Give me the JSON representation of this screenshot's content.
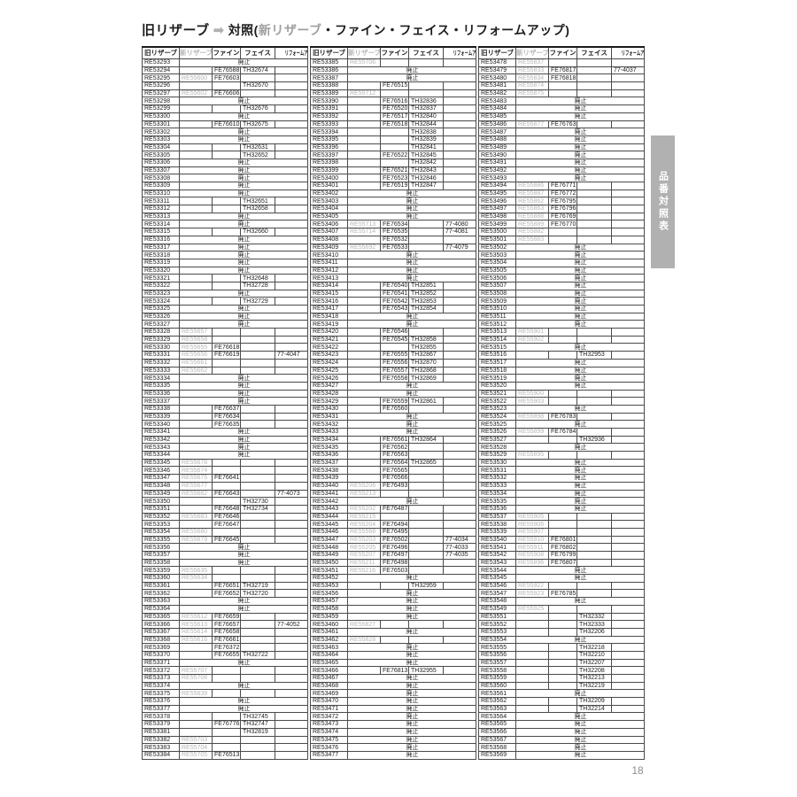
{
  "title": {
    "prefix": "旧リザーブ",
    "arrow": "➡",
    "before_highlight": "対照(",
    "highlight": "新リザーブ",
    "after_highlight": "・ファイン・フェイス・リフォームアップ)"
  },
  "side_tab_label": "品番対照表",
  "page_number": "18",
  "labels": {
    "discontinued": "廃止"
  },
  "table_headers": [
    "旧リザーブ",
    "新リザーブ",
    "ファイン",
    "フェイス",
    "リフォームアップ"
  ],
  "tables": [
    {
      "rows": [
        [
          "RE53293"
        ],
        [
          "RE53294",
          "",
          "FE76588",
          "TH32674"
        ],
        [
          "RE53295",
          "RE55600",
          "FE76603"
        ],
        [
          "RE53296",
          "",
          "",
          "TH32670"
        ],
        [
          "RE53297",
          "RE55602",
          "FE76606"
        ],
        [
          "RE53298"
        ],
        [
          "RE53299",
          "",
          "",
          "TH32676"
        ],
        [
          "RE53300"
        ],
        [
          "RE53301",
          "",
          "FE76610",
          "TH32675"
        ],
        [
          "RE53302"
        ],
        [
          "RE53303"
        ],
        [
          "RE53304",
          "",
          "",
          "TH32631"
        ],
        [
          "RE53305",
          "",
          "",
          "TH32652"
        ],
        [
          "RE53306"
        ],
        [
          "RE53307"
        ],
        [
          "RE53308"
        ],
        [
          "RE53309"
        ],
        [
          "RE53310"
        ],
        [
          "RE53311",
          "",
          "",
          "TH32651"
        ],
        [
          "RE53312",
          "",
          "",
          "TH32658"
        ],
        [
          "RE53313"
        ],
        [
          "RE53314"
        ],
        [
          "RE53315",
          "",
          "",
          "TH32660"
        ],
        [
          "RE53316"
        ],
        [
          "RE53317"
        ],
        [
          "RE53318"
        ],
        [
          "RE53319"
        ],
        [
          "RE53320"
        ],
        [
          "RE53321",
          "",
          "",
          "TH32648"
        ],
        [
          "RE53322",
          "",
          "",
          "TH32728"
        ],
        [
          "RE53323"
        ],
        [
          "RE53324",
          "",
          "",
          "TH32729"
        ],
        [
          "RE53325"
        ],
        [
          "RE53326"
        ],
        [
          "RE53327"
        ],
        [
          "RE53328",
          "RE55657"
        ],
        [
          "RE53329",
          "RE55658"
        ],
        [
          "RE53330",
          "RE55655",
          "FE76618"
        ],
        [
          "RE53331",
          "RE55656",
          "FE76619",
          "",
          "77-4047"
        ],
        [
          "RE53332",
          "RE55661"
        ],
        [
          "RE53333",
          "RE55662"
        ],
        [
          "RE53334"
        ],
        [
          "RE53335"
        ],
        [
          "RE53336"
        ],
        [
          "RE53337"
        ],
        [
          "RE53338",
          "",
          "FE76637"
        ],
        [
          "RE53339",
          "",
          "FE76634"
        ],
        [
          "RE53340",
          "",
          "FE76635"
        ],
        [
          "RE53341"
        ],
        [
          "RE53342"
        ],
        [
          "RE53343"
        ],
        [
          "RE53344"
        ],
        [
          "RE53345",
          "RE55678"
        ],
        [
          "RE53346",
          "RE55674"
        ],
        [
          "RE53347",
          "RE55675",
          "FE76641"
        ],
        [
          "RE53348",
          "RE55677"
        ],
        [
          "RE53349",
          "RE55682",
          "FE76643",
          "",
          "77-4073"
        ],
        [
          "RE53350",
          "",
          "",
          "TH32730"
        ],
        [
          "RE53351",
          "",
          "FE76648",
          "TH32734"
        ],
        [
          "RE53352",
          "RE55683",
          "FE76646"
        ],
        [
          "RE53353",
          "",
          "FE76647"
        ],
        [
          "RE53354",
          "RE55680"
        ],
        [
          "RE53355",
          "RE55679",
          "FE76645"
        ],
        [
          "RE53356"
        ],
        [
          "RE53357"
        ],
        [
          "RE53358"
        ],
        [
          "RE53359",
          "RE55635"
        ],
        [
          "RE53360",
          "RE55634"
        ],
        [
          "RE53361",
          "",
          "FE76651",
          "TH32719"
        ],
        [
          "RE53362",
          "",
          "FE76652",
          "TH32720"
        ],
        [
          "RE53363"
        ],
        [
          "RE53364"
        ],
        [
          "RE53365",
          "RE55612",
          "FE76659"
        ],
        [
          "RE53366",
          "RE55613",
          "FE76657",
          "",
          "77-4052"
        ],
        [
          "RE53367",
          "RE55614",
          "FE76658"
        ],
        [
          "RE53368",
          "RE55616",
          "FE76661"
        ],
        [
          "RE53369",
          "",
          "FE76372"
        ],
        [
          "RE53370",
          "",
          "FE76655",
          "TH32722"
        ],
        [
          "RE53371"
        ],
        [
          "RE53372",
          "RE55707"
        ],
        [
          "RE53373",
          "RE55708"
        ],
        [
          "RE53374"
        ],
        [
          "RE53375",
          "RE55639"
        ],
        [
          "RE53376"
        ],
        [
          "RE53377"
        ],
        [
          "RE53378",
          "",
          "",
          "TH32745"
        ],
        [
          "RE53379",
          "",
          "FE76776",
          "TH32747"
        ],
        [
          "RE53381",
          "",
          "",
          "TH32819"
        ],
        [
          "RE53382",
          "RE55703"
        ],
        [
          "RE53383",
          "RE55704"
        ],
        [
          "RE53384",
          "RE55705",
          "FE76513"
        ]
      ]
    },
    {
      "rows": [
        [
          "RE53385",
          "RE55706"
        ],
        [
          "RE53386"
        ],
        [
          "RE53387"
        ],
        [
          "RE53388",
          "",
          "FE76515"
        ],
        [
          "RE53389",
          "RE55712"
        ],
        [
          "RE53390",
          "",
          "FE76516",
          "TH32836"
        ],
        [
          "RE53391",
          "",
          "FE76520",
          "TH32837"
        ],
        [
          "RE53392",
          "",
          "FE76517",
          "TH32840"
        ],
        [
          "RE53393",
          "",
          "FE76518",
          "TH32844"
        ],
        [
          "RE53394",
          "",
          "",
          "TH32838"
        ],
        [
          "RE53395",
          "",
          "",
          "TH32839"
        ],
        [
          "RE53396",
          "",
          "",
          "TH32841"
        ],
        [
          "RE53397",
          "",
          "FE76522",
          "TH32845"
        ],
        [
          "RE53398",
          "",
          "",
          "TH32842"
        ],
        [
          "RE53399",
          "",
          "FE76521",
          "TH32843"
        ],
        [
          "RE53400",
          "",
          "FE76523",
          "TH32846"
        ],
        [
          "RE53401",
          "",
          "FE76519",
          "TH32847"
        ],
        [
          "RE53402"
        ],
        [
          "RE53403"
        ],
        [
          "RE53404"
        ],
        [
          "RE53405"
        ],
        [
          "RE53406",
          "RE55713",
          "FE76534",
          "",
          "77-4080"
        ],
        [
          "RE53407",
          "RE55714",
          "FE76535",
          "",
          "77-4081"
        ],
        [
          "RE53408",
          "",
          "FE76532"
        ],
        [
          "RE53409",
          "RE55692",
          "FE76533",
          "",
          "77-4079"
        ],
        [
          "RE53410"
        ],
        [
          "RE53411"
        ],
        [
          "RE53412"
        ],
        [
          "RE53413"
        ],
        [
          "RE53414",
          "",
          "FE76540",
          "TH32851"
        ],
        [
          "RE53415",
          "",
          "FE76541",
          "TH32852"
        ],
        [
          "RE53416",
          "",
          "FE76542",
          "TH32853"
        ],
        [
          "RE53417",
          "",
          "FE76543",
          "TH32854"
        ],
        [
          "RE53418"
        ],
        [
          "RE53419"
        ],
        [
          "RE53420",
          "",
          "FE76546"
        ],
        [
          "RE53421",
          "",
          "FE76545",
          "TH32858"
        ],
        [
          "RE53422",
          "",
          "",
          "TH32855"
        ],
        [
          "RE53423",
          "",
          "FE76555",
          "TH32867"
        ],
        [
          "RE53424",
          "",
          "FE76556",
          "TH32870"
        ],
        [
          "RE53425",
          "",
          "FE76557",
          "TH32868"
        ],
        [
          "RE53426",
          "",
          "FE76558",
          "TH32869"
        ],
        [
          "RE53427"
        ],
        [
          "RE53428"
        ],
        [
          "RE53429",
          "",
          "FE76559",
          "TH32861"
        ],
        [
          "RE53430",
          "",
          "FE76560"
        ],
        [
          "RE53431"
        ],
        [
          "RE53432"
        ],
        [
          "RE53433"
        ],
        [
          "RE53434",
          "",
          "FE76561",
          "TH32864"
        ],
        [
          "RE53435",
          "",
          "FE76562"
        ],
        [
          "RE53436",
          "",
          "FE76563"
        ],
        [
          "RE53437",
          "",
          "FE76564",
          "TH32865"
        ],
        [
          "RE53438",
          "",
          "FE76565"
        ],
        [
          "RE53439",
          "",
          "FE76566"
        ],
        [
          "RE53440",
          "RE55206",
          "FE76493"
        ],
        [
          "RE53441",
          "RE55213"
        ],
        [
          "RE53442"
        ],
        [
          "RE53443",
          "RE55202",
          "FE76487"
        ],
        [
          "RE53444",
          "RE55215"
        ],
        [
          "RE53445",
          "RE55204",
          "FE76494"
        ],
        [
          "RE53446",
          "RE55568",
          "FE76495"
        ],
        [
          "RE53447",
          "RE55203",
          "FE76502",
          "",
          "77-4034"
        ],
        [
          "RE53448",
          "RE55205",
          "FE76496",
          "",
          "77-4033"
        ],
        [
          "RE53449",
          "RE55207",
          "FE76497",
          "",
          "77-4035"
        ],
        [
          "RE53450",
          "RE55211",
          "FE76498"
        ],
        [
          "RE53451",
          "RE55216",
          "FE76503"
        ],
        [
          "RE53452"
        ],
        [
          "RE53453",
          "",
          "",
          "TH32959"
        ],
        [
          "RE53456"
        ],
        [
          "RE53457"
        ],
        [
          "RE53458"
        ],
        [
          "RE53459"
        ],
        [
          "RE53460",
          "RE55827"
        ],
        [
          "RE53461"
        ],
        [
          "RE53462",
          "RE55828"
        ],
        [
          "RE53463"
        ],
        [
          "RE53464"
        ],
        [
          "RE53465"
        ],
        [
          "RE53466",
          "",
          "FE76813",
          "TH32955"
        ],
        [
          "RE53467"
        ],
        [
          "RE53468"
        ],
        [
          "RE53469"
        ],
        [
          "RE53470"
        ],
        [
          "RE53471"
        ],
        [
          "RE53472"
        ],
        [
          "RE53473"
        ],
        [
          "RE53474"
        ],
        [
          "RE53475"
        ],
        [
          "RE53476"
        ],
        [
          "RE53477"
        ]
      ]
    },
    {
      "rows": [
        [
          "RE53478",
          "RE55837"
        ],
        [
          "RE53479",
          "RE55833",
          "FE76817",
          "",
          "77-4037"
        ],
        [
          "RE53480",
          "RE55834",
          "FE76818"
        ],
        [
          "RE53481",
          "RE55874"
        ],
        [
          "RE53482",
          "RE55875"
        ],
        [
          "RE53483"
        ],
        [
          "RE53484"
        ],
        [
          "RE53485"
        ],
        [
          "RE53486",
          "RE55877",
          "FE76763"
        ],
        [
          "RE53487"
        ],
        [
          "RE53488"
        ],
        [
          "RE53489"
        ],
        [
          "RE53490"
        ],
        [
          "RE53491"
        ],
        [
          "RE53492"
        ],
        [
          "RE53493"
        ],
        [
          "RE53494",
          "RE55886",
          "FE76771"
        ],
        [
          "RE53495",
          "RE55887",
          "FE76772"
        ],
        [
          "RE53496",
          "RE55862",
          "FE76795"
        ],
        [
          "RE53497",
          "RE55863",
          "FE76796"
        ],
        [
          "RE53498",
          "RE55888",
          "FE76769"
        ],
        [
          "RE53499",
          "RE55889",
          "FE76770"
        ],
        [
          "RE53500",
          "RE55882"
        ],
        [
          "RE53501",
          "RE55883"
        ],
        [
          "RE53502"
        ],
        [
          "RE53503"
        ],
        [
          "RE53504"
        ],
        [
          "RE53505"
        ],
        [
          "RE53506"
        ],
        [
          "RE53507"
        ],
        [
          "RE53508"
        ],
        [
          "RE53509"
        ],
        [
          "RE53510"
        ],
        [
          "RE53511"
        ],
        [
          "RE53512"
        ],
        [
          "RE53513",
          "RE55901"
        ],
        [
          "RE53514",
          "RE55902"
        ],
        [
          "RE53515"
        ],
        [
          "RE53516",
          "",
          "",
          "TH32953"
        ],
        [
          "RE53517"
        ],
        [
          "RE53518"
        ],
        [
          "RE53519"
        ],
        [
          "RE53520"
        ],
        [
          "RE53521",
          "RE55900"
        ],
        [
          "RE53522",
          "RE55903"
        ],
        [
          "RE53523"
        ],
        [
          "RE53524",
          "RE55898",
          "FE76783"
        ],
        [
          "RE53525"
        ],
        [
          "RE53526",
          "RE55899",
          "FE76784"
        ],
        [
          "RE53527",
          "",
          "",
          "TH32936"
        ],
        [
          "RE53528"
        ],
        [
          "RE53529",
          "RE55895"
        ],
        [
          "RE53530"
        ],
        [
          "RE53531"
        ],
        [
          "RE53532"
        ],
        [
          "RE53533"
        ],
        [
          "RE53534"
        ],
        [
          "RE53535"
        ],
        [
          "RE53536"
        ],
        [
          "RE53537",
          "RE55905"
        ],
        [
          "RE53538",
          "RE55906"
        ],
        [
          "RE53539",
          "RE55907"
        ],
        [
          "RE53540",
          "RE55910",
          "FE76801"
        ],
        [
          "RE53541",
          "RE55911",
          "FE76802"
        ],
        [
          "RE53542",
          "RE55908",
          "FE76799"
        ],
        [
          "RE53543",
          "RE55896",
          "FE76807"
        ],
        [
          "RE53544"
        ],
        [
          "RE53545"
        ],
        [
          "RE53546",
          "RE55922"
        ],
        [
          "RE53547",
          "RE55923",
          "FE76785"
        ],
        [
          "RE53548"
        ],
        [
          "RE53549",
          "RE55925"
        ],
        [
          "RE53551",
          "",
          "",
          "TH32332"
        ],
        [
          "RE53552",
          "",
          "",
          "TH32333"
        ],
        [
          "RE53553",
          "",
          "",
          "TH32206"
        ],
        [
          "RE53554"
        ],
        [
          "RE53555",
          "",
          "",
          "TH32218"
        ],
        [
          "RE53556",
          "",
          "",
          "TH32210"
        ],
        [
          "RE53557",
          "",
          "",
          "TH32207"
        ],
        [
          "RE53558",
          "",
          "",
          "TH32208"
        ],
        [
          "RE53559",
          "",
          "",
          "TH32213"
        ],
        [
          "RE53560",
          "",
          "",
          "TH32219"
        ],
        [
          "RE53561"
        ],
        [
          "RE53562",
          "",
          "",
          "TH32209"
        ],
        [
          "RE53563",
          "",
          "",
          "TH32214"
        ],
        [
          "RE53564"
        ],
        [
          "RE53565"
        ],
        [
          "RE53566"
        ],
        [
          "RE53567"
        ],
        [
          "RE53568"
        ],
        [
          "RE53569"
        ]
      ]
    }
  ]
}
